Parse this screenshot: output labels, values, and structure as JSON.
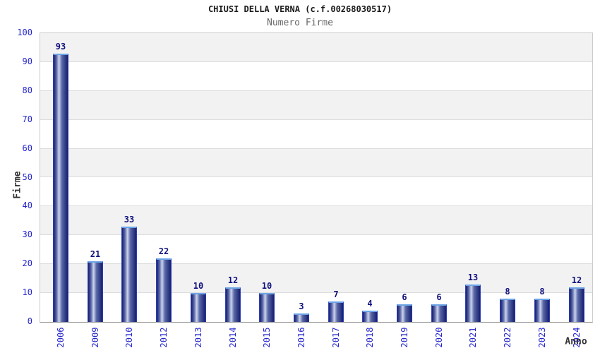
{
  "page": {
    "title": "CHIUSI DELLA VERNA (c.f.00268030517)",
    "subtitle": "Numero Firme"
  },
  "chart_data": {
    "type": "bar",
    "title": "CHIUSI DELLA VERNA (c.f.00268030517)",
    "subtitle": "Numero Firme",
    "xlabel": "Anno",
    "ylabel": "Firme",
    "categories": [
      "2006",
      "2009",
      "2010",
      "2012",
      "2013",
      "2014",
      "2015",
      "2016",
      "2017",
      "2018",
      "2019",
      "2020",
      "2021",
      "2022",
      "2023",
      "2024"
    ],
    "values": [
      93,
      21,
      33,
      22,
      10,
      12,
      10,
      3,
      7,
      4,
      6,
      6,
      13,
      8,
      8,
      12
    ],
    "ylim": [
      0,
      100
    ],
    "ytick_step": 10,
    "grid": true,
    "legend": "none",
    "band_pattern": "alternating horizontal bands, gray on top band"
  },
  "colors": {
    "title": "#1a1a1a",
    "subtitle": "#666666",
    "axis_title": "#333333",
    "axis_text": "#2626cd",
    "value_label": "#11117d",
    "bar_border": "#2e3cb8",
    "bar_top_highlight": "#6ca4e6",
    "bar_dark": "#161f6d",
    "bar_mid": "#5a68a8",
    "bar_light": "#cdd4ec",
    "band_gray": "#f2f2f2",
    "band_white": "#ffffff",
    "gridline": "#dcdcdc",
    "plot_border": "#cccccc",
    "axis_line": "#999999"
  }
}
